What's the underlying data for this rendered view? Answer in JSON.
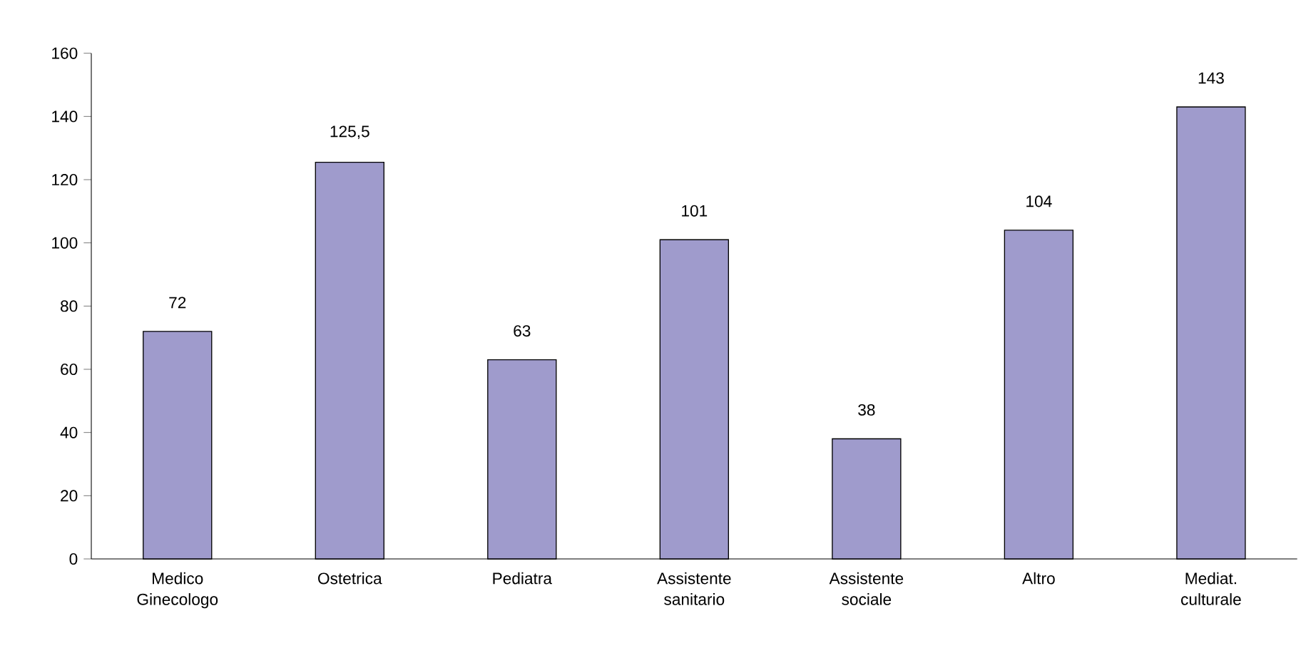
{
  "chart_data": {
    "type": "bar",
    "categories": [
      "Medico Ginecologo",
      "Ostetrica",
      "Pediatra",
      "Assistente sanitario",
      "Assistente sociale",
      "Altro",
      "Mediat. culturale"
    ],
    "values": [
      72,
      125.5,
      63,
      101,
      38,
      104,
      143
    ],
    "value_labels": [
      "72",
      "125,5",
      "63",
      "101",
      "38",
      "104",
      "143"
    ],
    "color": "#9f9bcc",
    "ylim": [
      0,
      160
    ],
    "yticks": [
      0,
      20,
      40,
      60,
      80,
      100,
      120,
      140,
      160
    ],
    "grid": false
  }
}
